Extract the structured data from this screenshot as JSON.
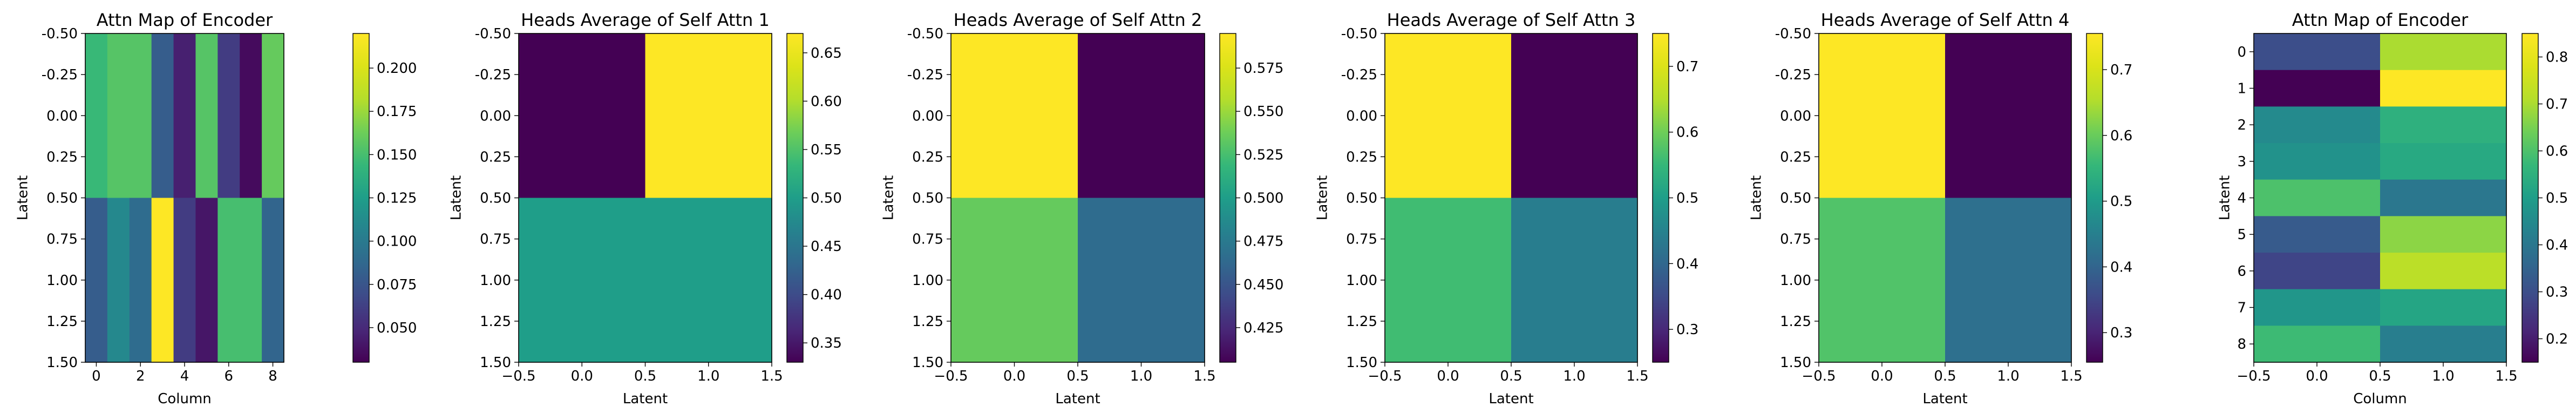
{
  "colormap": "viridis",
  "chart_data": [
    {
      "type": "heatmap",
      "title": "Attn Map of Encoder",
      "xlabel": "Column",
      "ylabel": "Latent",
      "xlim": [
        -0.5,
        8.5
      ],
      "ylim": [
        1.5,
        -0.5
      ],
      "x_ticks": [
        "0",
        "2",
        "4",
        "6",
        "8"
      ],
      "x_tick_values": [
        0,
        2,
        4,
        6,
        8
      ],
      "y_ticks": [
        "-0.50",
        "-0.25",
        "0.00",
        "0.25",
        "0.50",
        "0.75",
        "1.00",
        "1.25",
        "1.50"
      ],
      "y_tick_values": [
        -0.5,
        -0.25,
        0,
        0.25,
        0.5,
        0.75,
        1.0,
        1.25,
        1.5
      ],
      "color_range": [
        0.03,
        0.22
      ],
      "colorbar_ticks": [
        "0.050",
        "0.075",
        "0.100",
        "0.125",
        "0.150",
        "0.175",
        "0.200"
      ],
      "colorbar_tick_values": [
        0.05,
        0.075,
        0.1,
        0.125,
        0.15,
        0.175,
        0.2
      ],
      "values": [
        [
          0.145,
          0.155,
          0.155,
          0.08,
          0.045,
          0.155,
          0.06,
          0.035,
          0.16
        ],
        [
          0.08,
          0.11,
          0.09,
          0.22,
          0.06,
          0.04,
          0.15,
          0.15,
          0.085
        ]
      ]
    },
    {
      "type": "heatmap",
      "title": "Heads Average of Self Attn 1",
      "xlabel": "Latent",
      "ylabel": "Latent",
      "xlim": [
        -0.5,
        1.5
      ],
      "ylim": [
        1.5,
        -0.5
      ],
      "x_ticks": [
        "−0.5",
        "0.0",
        "0.5",
        "1.0",
        "1.5"
      ],
      "x_tick_values": [
        -0.5,
        0,
        0.5,
        1.0,
        1.5
      ],
      "y_ticks": [
        "-0.50",
        "-0.25",
        "0.00",
        "0.25",
        "0.50",
        "0.75",
        "1.00",
        "1.25",
        "1.50"
      ],
      "y_tick_values": [
        -0.5,
        -0.25,
        0,
        0.25,
        0.5,
        0.75,
        1.0,
        1.25,
        1.5
      ],
      "color_range": [
        0.33,
        0.67
      ],
      "colorbar_ticks": [
        "0.35",
        "0.40",
        "0.45",
        "0.50",
        "0.55",
        "0.60",
        "0.65"
      ],
      "colorbar_tick_values": [
        0.35,
        0.4,
        0.45,
        0.5,
        0.55,
        0.6,
        0.65
      ],
      "values": [
        [
          0.33,
          0.67
        ],
        [
          0.5,
          0.5
        ]
      ]
    },
    {
      "type": "heatmap",
      "title": "Heads Average of Self Attn 2",
      "xlabel": "Latent",
      "ylabel": "Latent",
      "xlim": [
        -0.5,
        1.5
      ],
      "ylim": [
        1.5,
        -0.5
      ],
      "x_ticks": [
        "−0.5",
        "0.0",
        "0.5",
        "1.0",
        "1.5"
      ],
      "x_tick_values": [
        -0.5,
        0,
        0.5,
        1.0,
        1.5
      ],
      "y_ticks": [
        "-0.50",
        "-0.25",
        "0.00",
        "0.25",
        "0.50",
        "0.75",
        "1.00",
        "1.25",
        "1.50"
      ],
      "y_tick_values": [
        -0.5,
        -0.25,
        0,
        0.25,
        0.5,
        0.75,
        1.0,
        1.25,
        1.5
      ],
      "color_range": [
        0.405,
        0.595
      ],
      "colorbar_ticks": [
        "0.425",
        "0.450",
        "0.475",
        "0.500",
        "0.525",
        "0.550",
        "0.575"
      ],
      "colorbar_tick_values": [
        0.425,
        0.45,
        0.475,
        0.5,
        0.525,
        0.55,
        0.575
      ],
      "values": [
        [
          0.595,
          0.405
        ],
        [
          0.535,
          0.465
        ]
      ]
    },
    {
      "type": "heatmap",
      "title": "Heads Average of Self Attn 3",
      "xlabel": "Latent",
      "ylabel": "Latent",
      "xlim": [
        -0.5,
        1.5
      ],
      "ylim": [
        1.5,
        -0.5
      ],
      "x_ticks": [
        "−0.5",
        "0.0",
        "0.5",
        "1.0",
        "1.5"
      ],
      "x_tick_values": [
        -0.5,
        0,
        0.5,
        1.0,
        1.5
      ],
      "y_ticks": [
        "-0.50",
        "-0.25",
        "0.00",
        "0.25",
        "0.50",
        "0.75",
        "1.00",
        "1.25",
        "1.50"
      ],
      "y_tick_values": [
        -0.5,
        -0.25,
        0,
        0.25,
        0.5,
        0.75,
        1.0,
        1.25,
        1.5
      ],
      "color_range": [
        0.25,
        0.75
      ],
      "colorbar_ticks": [
        "0.3",
        "0.4",
        "0.5",
        "0.6",
        "0.7"
      ],
      "colorbar_tick_values": [
        0.3,
        0.4,
        0.5,
        0.6,
        0.7
      ],
      "values": [
        [
          0.75,
          0.25
        ],
        [
          0.56,
          0.44
        ]
      ]
    },
    {
      "type": "heatmap",
      "title": "Heads Average of Self Attn 4",
      "xlabel": "Latent",
      "ylabel": "Latent",
      "xlim": [
        -0.5,
        1.5
      ],
      "ylim": [
        1.5,
        -0.5
      ],
      "x_ticks": [
        "−0.5",
        "0.0",
        "0.5",
        "1.0",
        "1.5"
      ],
      "x_tick_values": [
        -0.5,
        0,
        0.5,
        1.0,
        1.5
      ],
      "y_ticks": [
        "-0.50",
        "-0.25",
        "0.00",
        "0.25",
        "0.50",
        "0.75",
        "1.00",
        "1.25",
        "1.50"
      ],
      "y_tick_values": [
        -0.5,
        -0.25,
        0,
        0.25,
        0.5,
        0.75,
        1.0,
        1.25,
        1.5
      ],
      "color_range": [
        0.255,
        0.755
      ],
      "colorbar_ticks": [
        "0.3",
        "0.4",
        "0.5",
        "0.6",
        "0.7"
      ],
      "colorbar_tick_values": [
        0.3,
        0.4,
        0.5,
        0.6,
        0.7
      ],
      "values": [
        [
          0.755,
          0.255
        ],
        [
          0.58,
          0.42
        ]
      ]
    },
    {
      "type": "heatmap",
      "title": "Attn Map of Encoder",
      "xlabel": "Column",
      "ylabel": "Latent",
      "xlim": [
        -0.5,
        1.5
      ],
      "ylim": [
        8.5,
        -0.5
      ],
      "x_ticks": [
        "−0.5",
        "0.0",
        "0.5",
        "1.0",
        "1.5"
      ],
      "x_tick_values": [
        -0.5,
        0,
        0.5,
        1.0,
        1.5
      ],
      "y_ticks": [
        "0",
        "1",
        "2",
        "3",
        "4",
        "5",
        "6",
        "7",
        "8"
      ],
      "y_tick_values": [
        0,
        1,
        2,
        3,
        4,
        5,
        6,
        7,
        8
      ],
      "color_range": [
        0.15,
        0.85
      ],
      "colorbar_ticks": [
        "0.2",
        "0.3",
        "0.4",
        "0.5",
        "0.6",
        "0.7",
        "0.8"
      ],
      "colorbar_tick_values": [
        0.2,
        0.3,
        0.4,
        0.5,
        0.6,
        0.7,
        0.8
      ],
      "values": [
        [
          0.3,
          0.7
        ],
        [
          0.15,
          0.85
        ],
        [
          0.45,
          0.55
        ],
        [
          0.47,
          0.53
        ],
        [
          0.6,
          0.4
        ],
        [
          0.33,
          0.67
        ],
        [
          0.28,
          0.72
        ],
        [
          0.48,
          0.52
        ],
        [
          0.58,
          0.42
        ]
      ]
    }
  ]
}
